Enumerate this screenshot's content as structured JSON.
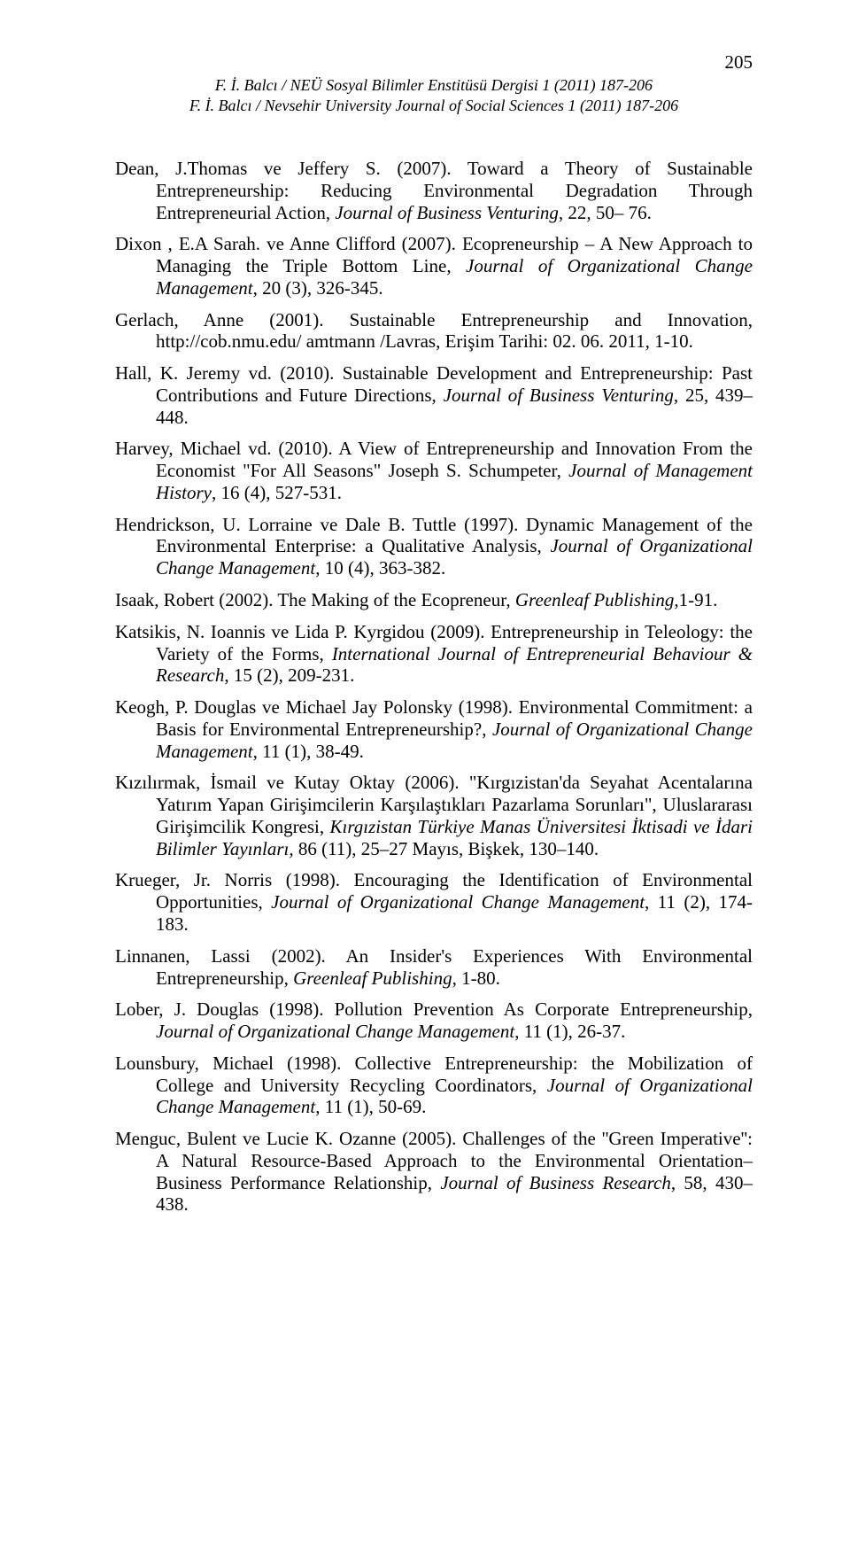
{
  "page_number": "205",
  "header": {
    "line1": "F. İ. Balcı / NEÜ Sosyal Bilimler Enstitüsü Dergisi 1 (2011) 187-206",
    "line2": "F. İ. Balcı / Nevsehir University Journal of Social Sciences 1 (2011) 187-206"
  },
  "references": [
    {
      "pre": "Dean, J.Thomas ve Jeffery S. (2007). Toward a Theory of Sustainable Entrepreneurship: Reducing Environmental Degradation Through Entrepreneurial Action, ",
      "ital": "Journal of Business Venturing",
      "post": ", 22, 50– 76."
    },
    {
      "pre": "Dixon , E.A Sarah. ve Anne Clifford (2007). Ecopreneurship – A New Approach to Managing the Triple Bottom Line, ",
      "ital": "Journal of Organizational Change Management",
      "post": ", 20 (3), 326-345."
    },
    {
      "pre": "Gerlach, Anne (2001). Sustainable Entrepreneurship and Innovation, http://cob.nmu.edu/ amtmann /Lavras, Erişim Tarihi: 02. 06. 2011, 1-10.",
      "ital": "",
      "post": ""
    },
    {
      "pre": "Hall, K. Jeremy vd. (2010). Sustainable Development and Entrepreneurship: Past Contributions and Future Directions, ",
      "ital": "Journal of Business Venturing",
      "post": ", 25, 439–448."
    },
    {
      "pre": "Harvey, Michael vd. (2010). A View of Entrepreneurship and Innovation From the Economist \"For All Seasons\" Joseph S. Schumpeter, ",
      "ital": "Journal of Management History",
      "post": ", 16 (4), 527-531."
    },
    {
      "pre": "Hendrickson, U. Lorraine ve Dale B. Tuttle (1997). Dynamic Management of the Environmental Enterprise: a Qualitative Analysis, ",
      "ital": "Journal of Organizational Change Management",
      "post": ", 10 (4), 363-382."
    },
    {
      "pre": "Isaak, Robert (2002). The Making of the Ecopreneur, ",
      "ital": "Greenleaf Publishing",
      "post": ",1-91."
    },
    {
      "pre": "Katsikis, N. Ioannis ve Lida P. Kyrgidou (2009). Entrepreneurship in Teleology: the Variety of the Forms, ",
      "ital": "International Journal of Entrepreneurial Behaviour & Research",
      "post": ", 15 (2), 209-231."
    },
    {
      "pre": "Keogh, P. Douglas ve Michael Jay Polonsky (1998). Environmental Commitment: a Basis for Environmental Entrepreneurship?, ",
      "ital": "Journal of Organizational Change Management",
      "post": ", 11 (1), 38-49."
    },
    {
      "pre": "Kızılırmak, İsmail ve Kutay Oktay (2006). \"Kırgızistan'da Seyahat Acentalarına Yatırım Yapan Girişimcilerin Karşılaştıkları Pazarlama Sorunları\", Uluslararası Girişimcilik Kongresi, ",
      "ital": "Kırgızistan Türkiye Manas Üniversitesi İktisadi ve İdari Bilimler Yayınları,",
      "post": " 86 (11), 25–27 Mayıs, Bişkek, 130–140."
    },
    {
      "pre": "Krueger, Jr. Norris (1998). Encouraging the Identification of Environmental Opportunities, ",
      "ital": "Journal of Organizational Change Management",
      "post": ", 11 (2), 174-183."
    },
    {
      "pre": "Linnanen, Lassi (2002). An Insider's Experiences With Environmental Entrepreneurship, ",
      "ital": "Greenleaf Publishing",
      "post": ", 1-80."
    },
    {
      "pre": "Lober, J. Douglas (1998). Pollution Prevention As Corporate Entrepreneurship, ",
      "ital": "Journal of Organizational Change Management",
      "post": ", 11 (1), 26-37."
    },
    {
      "pre": "Lounsbury, Michael (1998). Collective Entrepreneurship: the Mobilization of College and University Recycling Coordinators, ",
      "ital": "Journal of Organizational Change Management",
      "post": ", 11 (1), 50-69."
    },
    {
      "pre": "Menguc, Bulent ve Lucie K. Ozanne (2005). Challenges of the ''Green Imperative'': A Natural Resource-Based Approach to the Environmental Orientation–Business Performance Relationship, ",
      "ital": "Journal of Business Research",
      "post": ", 58, 430– 438."
    }
  ]
}
